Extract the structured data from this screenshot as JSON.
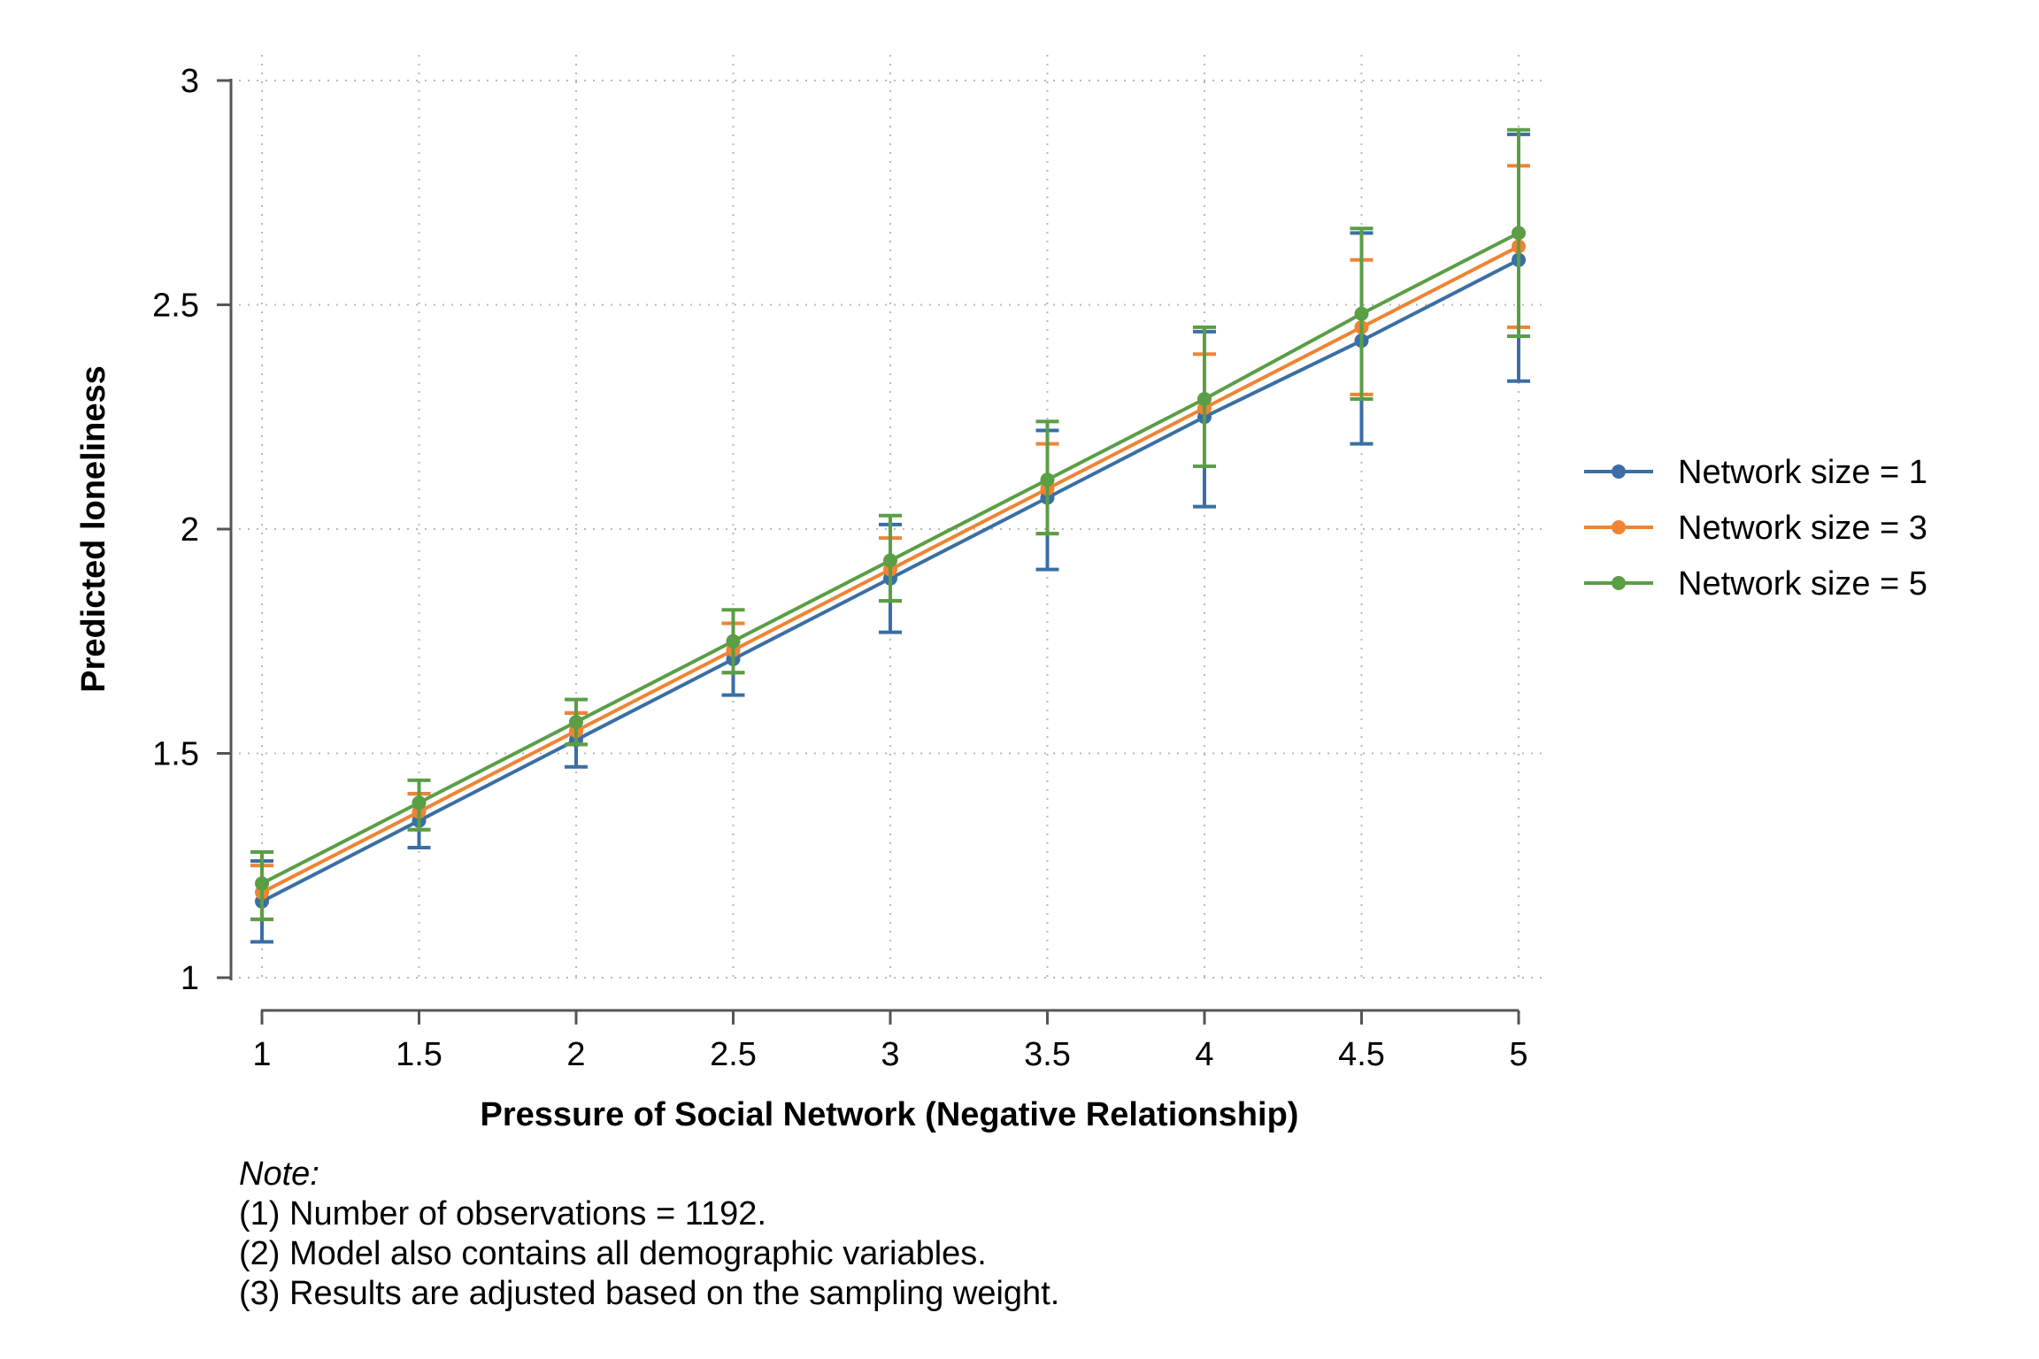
{
  "chart_data": {
    "type": "line",
    "ylabel": "Predicted loneliness",
    "xlabel": "Pressure of Social Network (Negative Relationship)",
    "x": [
      1,
      1.5,
      2,
      2.5,
      3,
      3.5,
      4,
      4.5,
      5
    ],
    "x_tick_labels": [
      "1",
      "1.5",
      "2",
      "2.5",
      "3",
      "3.5",
      "4",
      "4.5",
      "5"
    ],
    "y_ticks": [
      1,
      1.5,
      2,
      2.5,
      3
    ],
    "y_tick_labels": [
      "1",
      "1.5",
      "2",
      "2.5",
      "3"
    ],
    "xlim": [
      1,
      5
    ],
    "ylim": [
      1,
      3
    ],
    "grid": true,
    "legend_position": "right",
    "series": [
      {
        "name": "Network size = 1",
        "color": "#3a6ea5",
        "values": [
          1.17,
          1.35,
          1.53,
          1.71,
          1.89,
          2.07,
          2.25,
          2.42,
          2.6
        ],
        "ci_low": [
          1.08,
          1.29,
          1.47,
          1.63,
          1.77,
          1.91,
          2.05,
          2.19,
          2.33
        ],
        "ci_high": [
          1.26,
          1.41,
          1.59,
          1.79,
          2.01,
          2.22,
          2.44,
          2.66,
          2.88
        ]
      },
      {
        "name": "Network size = 3",
        "color": "#ee8434",
        "values": [
          1.19,
          1.37,
          1.55,
          1.73,
          1.91,
          2.09,
          2.27,
          2.45,
          2.63
        ],
        "ci_low": [
          1.13,
          1.33,
          1.52,
          1.68,
          1.84,
          1.99,
          2.14,
          2.3,
          2.45
        ],
        "ci_high": [
          1.25,
          1.41,
          1.59,
          1.79,
          1.98,
          2.19,
          2.39,
          2.6,
          2.81
        ]
      },
      {
        "name": "Network size = 5",
        "color": "#5a9e45",
        "values": [
          1.21,
          1.39,
          1.57,
          1.75,
          1.93,
          2.11,
          2.29,
          2.48,
          2.66
        ],
        "ci_low": [
          1.13,
          1.33,
          1.52,
          1.68,
          1.84,
          1.99,
          2.14,
          2.29,
          2.43
        ],
        "ci_high": [
          1.28,
          1.44,
          1.62,
          1.82,
          2.03,
          2.24,
          2.45,
          2.67,
          2.89
        ]
      }
    ]
  },
  "note": {
    "heading": "Note:",
    "lines": [
      "(1) Number of observations = 1192.",
      "(2) Model also contains all demographic variables.",
      "(3) Results are adjusted based on the sampling weight."
    ]
  }
}
